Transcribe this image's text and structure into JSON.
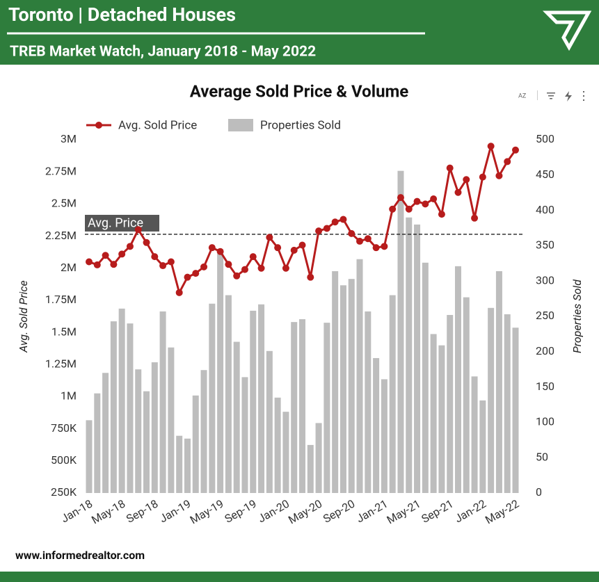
{
  "header": {
    "title": "Toronto | Detached Houses",
    "subtitle": "TREB Market Watch, January 2018 - May 2022"
  },
  "footer": {
    "url": "www.informedrealtor.com"
  },
  "chart_data": {
    "type": "combo",
    "title": "Average Sold Price & Volume",
    "y_label": "Avg. Sold Price",
    "y2_label": "Properties Sold",
    "categories": [
      "Jan-18",
      null,
      null,
      null,
      "May-18",
      null,
      null,
      null,
      "Sep-18",
      null,
      null,
      null,
      "Jan-19",
      null,
      null,
      null,
      "May-19",
      null,
      null,
      null,
      "Sep-19",
      null,
      null,
      null,
      "Jan-20",
      null,
      null,
      null,
      "May-20",
      null,
      null,
      null,
      "Sep-20",
      null,
      null,
      null,
      "Jan-21",
      null,
      null,
      null,
      "May-21",
      null,
      null,
      null,
      "Sep-21",
      null,
      null,
      null,
      "Jan-22",
      null,
      null,
      null,
      "May-22"
    ],
    "series": [
      {
        "name": "Avg. Sold Price",
        "type": "line",
        "color": "#b71c1c",
        "values": [
          2050000,
          2026000,
          2100000,
          2030000,
          2110000,
          2170000,
          2300000,
          2200000,
          2090000,
          2020000,
          2050000,
          1810000,
          1930000,
          1960000,
          2010000,
          2160000,
          2130000,
          2030000,
          1940000,
          1990000,
          2090000,
          2000000,
          2240000,
          2160000,
          2000000,
          2140000,
          2180000,
          1930000,
          2290000,
          2310000,
          2360000,
          2380000,
          2270000,
          2210000,
          2230000,
          2160000,
          2170000,
          2460000,
          2550000,
          2460000,
          2520000,
          2500000,
          2540000,
          2420000,
          2780000,
          2590000,
          2690000,
          2390000,
          2710000,
          2950000,
          2720000,
          2830000,
          2920000
        ]
      },
      {
        "name": "Properties Sold",
        "type": "bar",
        "axis": "y2",
        "color": "#bdbdbd",
        "values": [
          103,
          141,
          170,
          243,
          261,
          240,
          175,
          144,
          185,
          257,
          206,
          81,
          77,
          138,
          174,
          268,
          339,
          280,
          214,
          164,
          258,
          267,
          201,
          135,
          115,
          242,
          246,
          68,
          99,
          241,
          314,
          294,
          303,
          331,
          257,
          191,
          161,
          280,
          456,
          390,
          380,
          326,
          225,
          209,
          252,
          321,
          277,
          165,
          131,
          262,
          314,
          253,
          234
        ]
      }
    ],
    "reference_line": {
      "label": "Avg. Price",
      "value": 2264000
    },
    "ylim": [
      250000,
      3000000
    ],
    "yticks": [
      {
        "value": 250000,
        "label": "250K"
      },
      {
        "value": 500000,
        "label": "500K"
      },
      {
        "value": 750000,
        "label": "750K"
      },
      {
        "value": 1000000,
        "label": "1M"
      },
      {
        "value": 1250000,
        "label": "1.25M"
      },
      {
        "value": 1500000,
        "label": "1.5M"
      },
      {
        "value": 1750000,
        "label": "1.75M"
      },
      {
        "value": 2000000,
        "label": "2M"
      },
      {
        "value": 2250000,
        "label": "2.25M"
      },
      {
        "value": 2500000,
        "label": "2.5M"
      },
      {
        "value": 2750000,
        "label": "2.75M"
      },
      {
        "value": 3000000,
        "label": "3M"
      }
    ],
    "y2lim": [
      0,
      500
    ],
    "y2ticks": [
      0,
      50,
      100,
      150,
      200,
      250,
      300,
      350,
      400,
      450,
      500
    ],
    "grid": false,
    "legend": "top"
  }
}
